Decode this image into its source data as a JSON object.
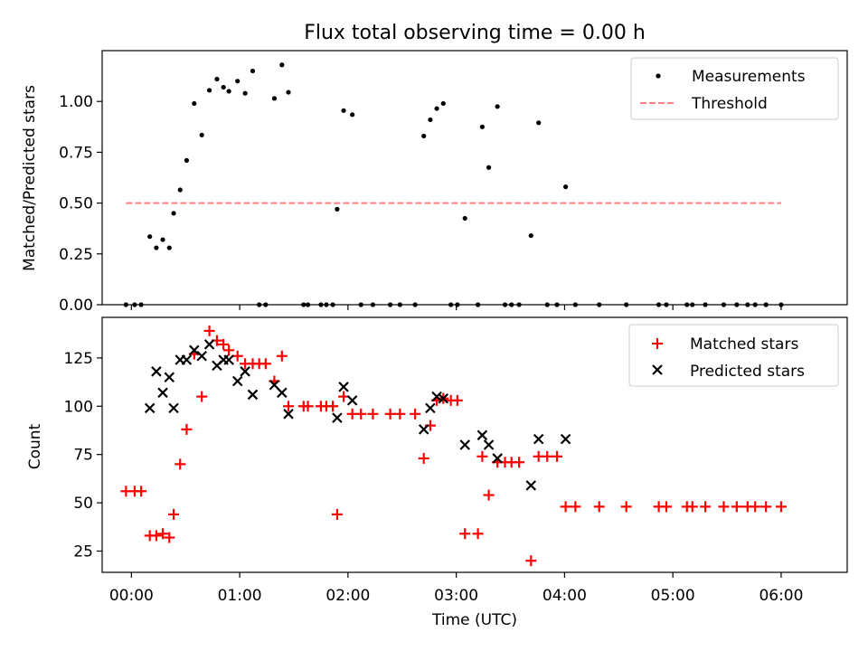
{
  "title": "Flux total observing time = 0.00 h",
  "chart_data": [
    {
      "type": "scatter",
      "title": "Flux total observing time = 0.00 h",
      "xlabel": "",
      "ylabel": "Matched/Predicted stars",
      "xlim": [
        -0.27,
        6.61
      ],
      "ylim": [
        0,
        1.25
      ],
      "yticks": [
        0,
        0.25,
        0.5,
        0.75,
        1.0
      ],
      "ytick_labels": [
        "0.00",
        "0.25",
        "0.50",
        "0.75",
        "1.00"
      ],
      "legend_position": "top-right",
      "series": [
        {
          "name": "Measurements",
          "marker": "dot",
          "color": "#000000",
          "points": [
            [
              -0.05,
              0.0
            ],
            [
              0.03,
              0.0
            ],
            [
              0.09,
              0.0
            ],
            [
              0.17,
              0.335
            ],
            [
              0.23,
              0.28
            ],
            [
              0.29,
              0.32
            ],
            [
              0.35,
              0.28
            ],
            [
              0.39,
              0.45
            ],
            [
              0.45,
              0.565
            ],
            [
              0.51,
              0.71
            ],
            [
              0.58,
              0.99
            ],
            [
              0.65,
              0.835
            ],
            [
              0.72,
              1.055
            ],
            [
              0.79,
              1.11
            ],
            [
              0.85,
              1.07
            ],
            [
              0.9,
              1.05
            ],
            [
              0.98,
              1.1
            ],
            [
              1.05,
              1.04
            ],
            [
              1.12,
              1.15
            ],
            [
              1.18,
              0.0
            ],
            [
              1.24,
              0.0
            ],
            [
              1.32,
              1.015
            ],
            [
              1.39,
              1.18
            ],
            [
              1.45,
              1.045
            ],
            [
              1.59,
              0.0
            ],
            [
              1.63,
              0.0
            ],
            [
              1.75,
              0.0
            ],
            [
              1.8,
              0.0
            ],
            [
              1.86,
              0.0
            ],
            [
              1.9,
              0.47
            ],
            [
              1.96,
              0.955
            ],
            [
              2.04,
              0.935
            ],
            [
              2.12,
              0.0
            ],
            [
              2.23,
              0.0
            ],
            [
              2.39,
              0.0
            ],
            [
              2.48,
              0.0
            ],
            [
              2.62,
              0.0
            ],
            [
              2.7,
              0.83
            ],
            [
              2.76,
              0.91
            ],
            [
              2.82,
              0.965
            ],
            [
              2.88,
              0.99
            ],
            [
              2.95,
              0.0
            ],
            [
              3.01,
              0.0
            ],
            [
              3.08,
              0.425
            ],
            [
              3.2,
              0.0
            ],
            [
              3.24,
              0.875
            ],
            [
              3.3,
              0.675
            ],
            [
              3.38,
              0.975
            ],
            [
              3.45,
              0.0
            ],
            [
              3.51,
              0.0
            ],
            [
              3.58,
              0.0
            ],
            [
              3.69,
              0.34
            ],
            [
              3.76,
              0.895
            ],
            [
              3.84,
              0.0
            ],
            [
              3.93,
              0.0
            ],
            [
              4.01,
              0.58
            ],
            [
              4.1,
              0.0
            ],
            [
              4.32,
              0.0
            ],
            [
              4.57,
              0.0
            ],
            [
              4.87,
              0.0
            ],
            [
              4.94,
              0.0
            ],
            [
              5.13,
              0.0
            ],
            [
              5.18,
              0.0
            ],
            [
              5.3,
              0.0
            ],
            [
              5.47,
              0.0
            ],
            [
              5.59,
              0.0
            ],
            [
              5.69,
              0.0
            ],
            [
              5.76,
              0.0
            ],
            [
              5.86,
              0.0
            ],
            [
              6.0,
              0.0
            ]
          ]
        },
        {
          "name": "Threshold",
          "line": "dashed",
          "color": "#ff8080",
          "points": [
            [
              -0.05,
              0.5
            ],
            [
              6.0,
              0.5
            ]
          ]
        }
      ]
    },
    {
      "type": "scatter",
      "xlabel": "Time (UTC)",
      "ylabel": "Count",
      "xlim": [
        -0.27,
        6.61
      ],
      "ylim": [
        14,
        146
      ],
      "yticks": [
        25,
        50,
        75,
        100,
        125
      ],
      "ytick_labels": [
        "25",
        "50",
        "75",
        "100",
        "125"
      ],
      "xticks": [
        0,
        1,
        2,
        3,
        4,
        5,
        6
      ],
      "xtick_labels": [
        "00:00",
        "01:00",
        "02:00",
        "03:00",
        "04:00",
        "05:00",
        "06:00"
      ],
      "legend_position": "top-right",
      "series": [
        {
          "name": "Matched stars",
          "marker": "plus",
          "color": "#ff0000",
          "points": [
            [
              -0.05,
              56
            ],
            [
              0.03,
              56
            ],
            [
              0.09,
              56
            ],
            [
              0.17,
              33
            ],
            [
              0.23,
              33
            ],
            [
              0.29,
              34
            ],
            [
              0.35,
              32
            ],
            [
              0.39,
              44
            ],
            [
              0.45,
              70
            ],
            [
              0.51,
              88
            ],
            [
              0.58,
              127
            ],
            [
              0.65,
              105
            ],
            [
              0.72,
              139
            ],
            [
              0.79,
              134
            ],
            [
              0.85,
              132
            ],
            [
              0.9,
              129
            ],
            [
              0.98,
              126
            ],
            [
              1.05,
              122
            ],
            [
              1.12,
              122
            ],
            [
              1.18,
              122
            ],
            [
              1.24,
              122
            ],
            [
              1.32,
              113
            ],
            [
              1.39,
              126
            ],
            [
              1.45,
              100
            ],
            [
              1.59,
              100
            ],
            [
              1.63,
              100
            ],
            [
              1.75,
              100
            ],
            [
              1.8,
              100
            ],
            [
              1.86,
              100
            ],
            [
              1.9,
              44
            ],
            [
              1.96,
              105
            ],
            [
              2.04,
              96
            ],
            [
              2.12,
              96
            ],
            [
              2.23,
              96
            ],
            [
              2.39,
              96
            ],
            [
              2.48,
              96
            ],
            [
              2.62,
              96
            ],
            [
              2.7,
              73
            ],
            [
              2.76,
              90
            ],
            [
              2.82,
              103
            ],
            [
              2.88,
              104
            ],
            [
              2.95,
              103
            ],
            [
              3.01,
              103
            ],
            [
              3.08,
              34
            ],
            [
              3.2,
              34
            ],
            [
              3.24,
              74
            ],
            [
              3.3,
              54
            ],
            [
              3.38,
              71
            ],
            [
              3.45,
              71
            ],
            [
              3.51,
              71
            ],
            [
              3.58,
              71
            ],
            [
              3.69,
              20
            ],
            [
              3.76,
              74
            ],
            [
              3.84,
              74
            ],
            [
              3.93,
              74
            ],
            [
              4.01,
              48
            ],
            [
              4.1,
              48
            ],
            [
              4.32,
              48
            ],
            [
              4.57,
              48
            ],
            [
              4.87,
              48
            ],
            [
              4.94,
              48
            ],
            [
              5.13,
              48
            ],
            [
              5.18,
              48
            ],
            [
              5.3,
              48
            ],
            [
              5.47,
              48
            ],
            [
              5.59,
              48
            ],
            [
              5.69,
              48
            ],
            [
              5.76,
              48
            ],
            [
              5.86,
              48
            ],
            [
              6.0,
              48
            ]
          ]
        },
        {
          "name": "Predicted stars",
          "marker": "x",
          "color": "#000000",
          "points": [
            [
              0.17,
              99
            ],
            [
              0.23,
              118
            ],
            [
              0.29,
              107
            ],
            [
              0.35,
              115
            ],
            [
              0.39,
              99
            ],
            [
              0.45,
              124
            ],
            [
              0.51,
              124
            ],
            [
              0.58,
              129
            ],
            [
              0.65,
              126
            ],
            [
              0.72,
              132
            ],
            [
              0.79,
              121
            ],
            [
              0.85,
              124
            ],
            [
              0.9,
              124
            ],
            [
              0.98,
              113
            ],
            [
              1.05,
              118
            ],
            [
              1.12,
              106
            ],
            [
              1.32,
              111
            ],
            [
              1.39,
              107
            ],
            [
              1.45,
              96
            ],
            [
              1.9,
              94
            ],
            [
              1.96,
              110
            ],
            [
              2.04,
              103
            ],
            [
              2.7,
              88
            ],
            [
              2.76,
              99
            ],
            [
              2.82,
              105
            ],
            [
              2.88,
              104
            ],
            [
              3.08,
              80
            ],
            [
              3.24,
              85
            ],
            [
              3.3,
              80
            ],
            [
              3.38,
              73
            ],
            [
              3.69,
              59
            ],
            [
              3.76,
              83
            ],
            [
              4.01,
              83
            ]
          ]
        }
      ]
    }
  ]
}
